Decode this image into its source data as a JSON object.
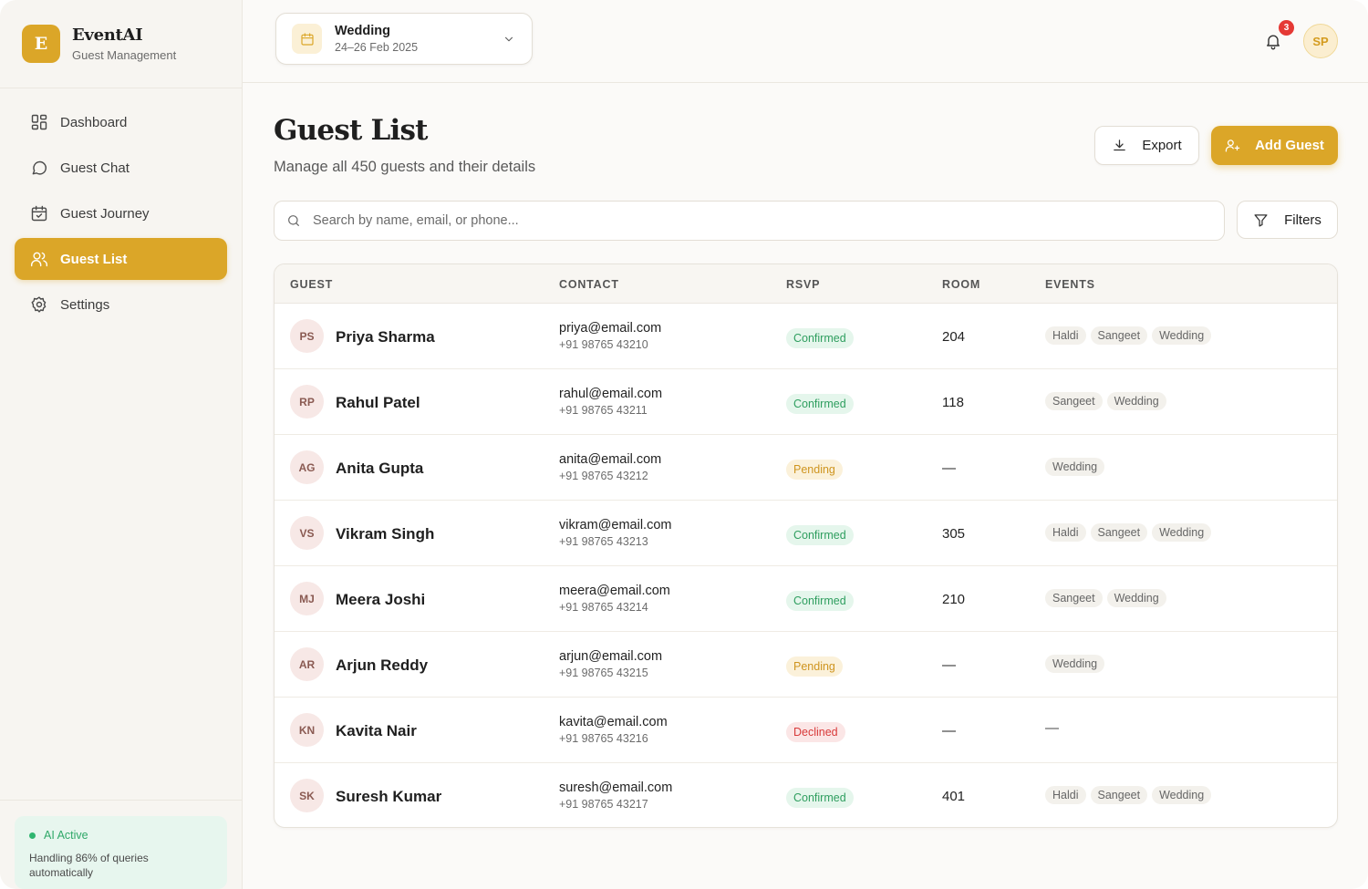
{
  "brand": {
    "logo_letter": "E",
    "name": "EventAI",
    "subtitle": "Guest Management",
    "accent": "#dba628"
  },
  "sidebar": {
    "items": [
      {
        "label": "Dashboard",
        "icon": "dashboard-icon",
        "active": false
      },
      {
        "label": "Guest Chat",
        "icon": "chat-icon",
        "active": false
      },
      {
        "label": "Guest Journey",
        "icon": "calendar-check-icon",
        "active": false
      },
      {
        "label": "Guest List",
        "icon": "users-icon",
        "active": true
      },
      {
        "label": "Settings",
        "icon": "gear-icon",
        "active": false
      }
    ],
    "ai": {
      "status": "AI Active",
      "note": "Handling 86% of queries automatically"
    }
  },
  "topbar": {
    "event": {
      "name": "Wedding",
      "dates": "24–26 Feb 2025"
    },
    "notifications": "3",
    "user_initials": "SP"
  },
  "page": {
    "title": "Guest List",
    "subtitle": "Manage all 450 guests and their details",
    "export_label": "Export",
    "add_label": "Add Guest",
    "search_placeholder": "Search by name, email, or phone...",
    "filters_label": "Filters"
  },
  "table": {
    "headers": {
      "guest": "GUEST",
      "contact": "CONTACT",
      "rsvp": "RSVP",
      "room": "ROOM",
      "events": "EVENTS"
    },
    "rows": [
      {
        "initials": "PS",
        "name": "Priya Sharma",
        "email": "priya@email.com",
        "phone": "+91 98765 43210",
        "rsvp": "Confirmed",
        "room": "204",
        "events": [
          "Haldi",
          "Sangeet",
          "Wedding"
        ]
      },
      {
        "initials": "RP",
        "name": "Rahul Patel",
        "email": "rahul@email.com",
        "phone": "+91 98765 43211",
        "rsvp": "Confirmed",
        "room": "118",
        "events": [
          "Sangeet",
          "Wedding"
        ]
      },
      {
        "initials": "AG",
        "name": "Anita Gupta",
        "email": "anita@email.com",
        "phone": "+91 98765 43212",
        "rsvp": "Pending",
        "room": "—",
        "events": [
          "Wedding"
        ]
      },
      {
        "initials": "VS",
        "name": "Vikram Singh",
        "email": "vikram@email.com",
        "phone": "+91 98765 43213",
        "rsvp": "Confirmed",
        "room": "305",
        "events": [
          "Haldi",
          "Sangeet",
          "Wedding"
        ]
      },
      {
        "initials": "MJ",
        "name": "Meera Joshi",
        "email": "meera@email.com",
        "phone": "+91 98765 43214",
        "rsvp": "Confirmed",
        "room": "210",
        "events": [
          "Sangeet",
          "Wedding"
        ]
      },
      {
        "initials": "AR",
        "name": "Arjun Reddy",
        "email": "arjun@email.com",
        "phone": "+91 98765 43215",
        "rsvp": "Pending",
        "room": "—",
        "events": [
          "Wedding"
        ]
      },
      {
        "initials": "KN",
        "name": "Kavita Nair",
        "email": "kavita@email.com",
        "phone": "+91 98765 43216",
        "rsvp": "Declined",
        "room": "—",
        "events": [],
        "events_empty": "—"
      },
      {
        "initials": "SK",
        "name": "Suresh Kumar",
        "email": "suresh@email.com",
        "phone": "+91 98765 43217",
        "rsvp": "Confirmed",
        "room": "401",
        "events": [
          "Haldi",
          "Sangeet",
          "Wedding"
        ]
      }
    ]
  }
}
